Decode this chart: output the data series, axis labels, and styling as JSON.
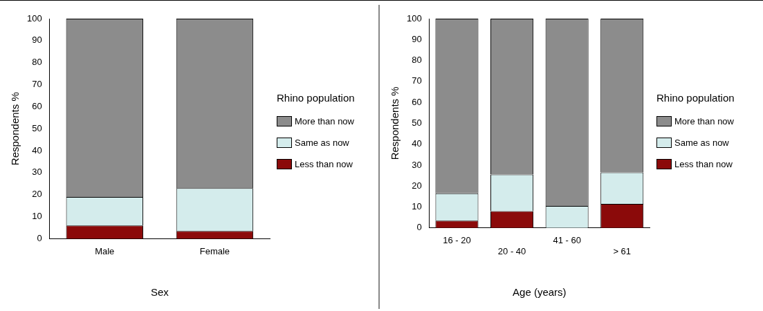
{
  "chart_data": [
    {
      "type": "bar",
      "stacked": true,
      "xlabel": "Sex",
      "ylabel": "Respondents %",
      "legend_title": "Rhino population",
      "legend": "right",
      "grid": false,
      "categories": [
        "Male",
        "Female"
      ],
      "ylim": [
        0,
        100
      ],
      "yticks": [
        0,
        10,
        20,
        30,
        40,
        50,
        60,
        70,
        80,
        90,
        100
      ],
      "series": [
        {
          "name": "Less than now",
          "color": "#8b0a0a",
          "values": [
            6,
            3.5
          ]
        },
        {
          "name": "Same as now",
          "color": "#d4ecec",
          "values": [
            13,
            19.5
          ]
        },
        {
          "name": "More than now",
          "color": "#8c8c8c",
          "values": [
            81,
            77
          ]
        }
      ]
    },
    {
      "type": "bar",
      "stacked": true,
      "xlabel": "Age (years)",
      "ylabel": "Respondents %",
      "legend_title": "Rhino population",
      "legend": "right",
      "grid": false,
      "categories": [
        "16 - 20",
        "20 - 40",
        "41 - 60",
        "> 61"
      ],
      "ylim": [
        0,
        100
      ],
      "yticks": [
        0,
        10,
        20,
        30,
        40,
        50,
        60,
        70,
        80,
        90,
        100
      ],
      "series": [
        {
          "name": "Less than now",
          "color": "#8b0a0a",
          "values": [
            3.5,
            8,
            0,
            11.5
          ]
        },
        {
          "name": "Same as now",
          "color": "#d4ecec",
          "values": [
            13,
            17.5,
            10.5,
            15
          ]
        },
        {
          "name": "More than now",
          "color": "#8c8c8c",
          "values": [
            83.5,
            74.5,
            89.5,
            73.5
          ]
        }
      ]
    }
  ]
}
